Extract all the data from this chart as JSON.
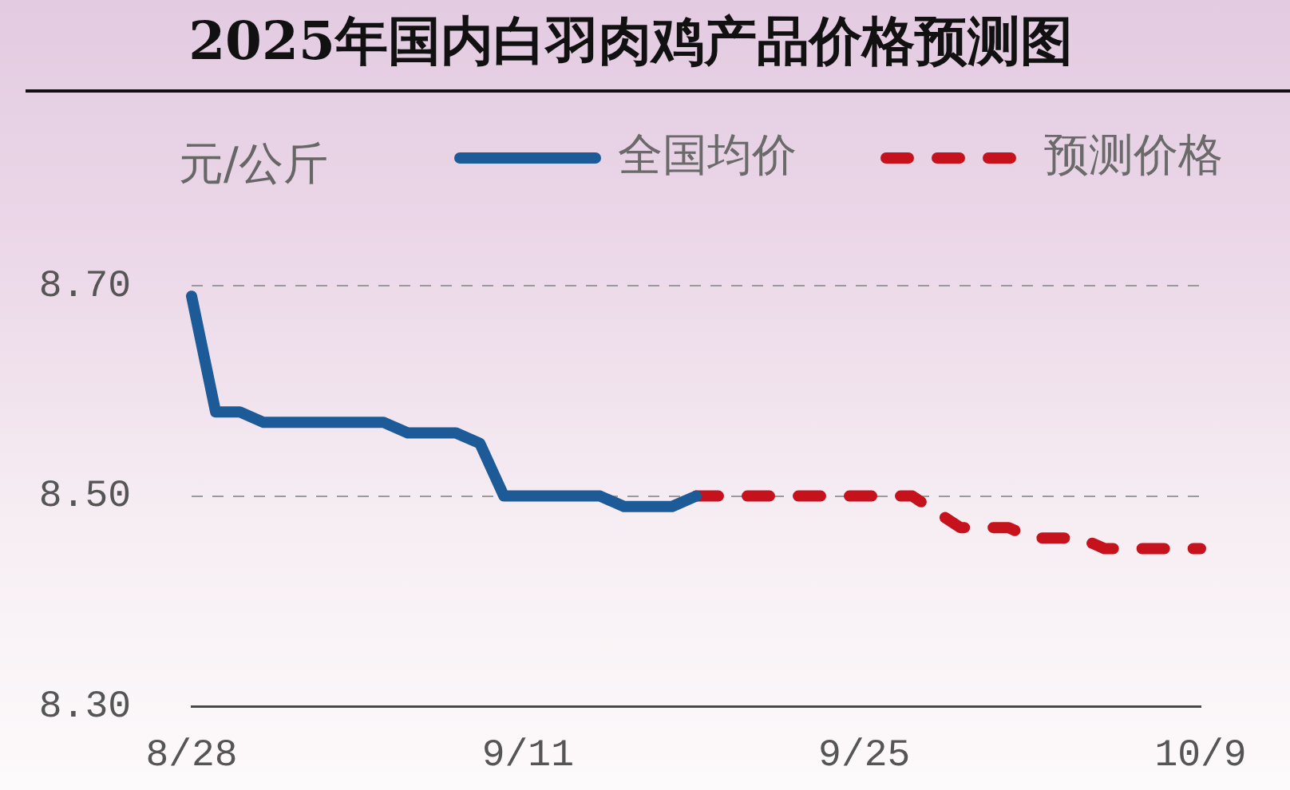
{
  "chart_data": {
    "type": "line",
    "title": "2025年国内白羽肉鸡产品价格预测图",
    "ylabel": "元/公斤",
    "series": [
      {
        "name": "全国均价",
        "color": "#1c5b97",
        "line_style": "solid",
        "x": [
          "--08-28",
          "--08-29",
          "--08-30",
          "--08-31",
          "--09-05",
          "--09-06",
          "--09-08",
          "--09-09",
          "--09-10",
          "--09-14",
          "--09-15",
          "--09-17",
          "--09-18"
        ],
        "values": [
          8.69,
          8.58,
          8.58,
          8.57,
          8.57,
          8.56,
          8.56,
          8.55,
          8.5,
          8.5,
          8.49,
          8.49,
          8.5
        ]
      },
      {
        "name": "预测价格",
        "color": "#c5121c",
        "line_style": "dashed",
        "x": [
          "--09-18",
          "--09-27",
          "--09-29",
          "--10-01",
          "--10-02",
          "--10-04",
          "--10-05",
          "--10-09"
        ],
        "values": [
          8.5,
          8.5,
          8.47,
          8.47,
          8.46,
          8.46,
          8.45,
          8.45
        ]
      }
    ],
    "xlim": [
      "--08-28",
      "--10-09"
    ],
    "xticks": [
      {
        "value": "--08-28",
        "label": "8/28"
      },
      {
        "value": "--09-11",
        "label": "9/11"
      },
      {
        "value": "--09-25",
        "label": "9/25"
      },
      {
        "value": "--10-09",
        "label": "10/9"
      }
    ],
    "ylim": [
      8.3,
      8.7
    ],
    "yticks": [
      {
        "value": 8.3,
        "label": "8.30"
      },
      {
        "value": 8.5,
        "label": "8.50"
      },
      {
        "value": 8.7,
        "label": "8.70"
      }
    ],
    "grid": "y",
    "legend": "top right",
    "marker": "none"
  }
}
